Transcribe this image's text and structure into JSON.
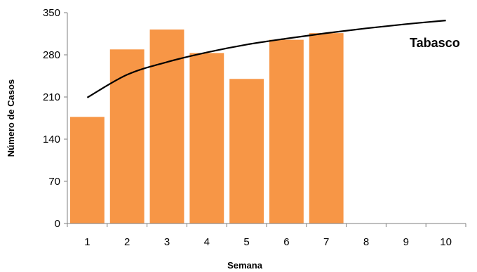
{
  "chart_data": {
    "type": "bar",
    "categories": [
      "1",
      "2",
      "3",
      "4",
      "5",
      "6",
      "7",
      "8",
      "9",
      "10"
    ],
    "values": [
      177,
      289,
      322,
      283,
      240,
      305,
      316,
      null,
      null,
      null
    ],
    "trendline": {
      "x": [
        1,
        2,
        3,
        4,
        5,
        6,
        7,
        8,
        9,
        10
      ],
      "y": [
        209,
        247,
        268,
        284,
        297,
        307,
        316,
        324,
        331,
        337
      ]
    },
    "xlabel": "Semana",
    "ylabel": "Número de Casos",
    "yticks": [
      0,
      70,
      140,
      210,
      280,
      350
    ],
    "ylim": [
      0,
      350
    ],
    "annotation": "Tabasco",
    "grid": false,
    "colors": {
      "bar": "#F79646",
      "trendline": "#000000",
      "axis": "#7f7f7f"
    }
  }
}
